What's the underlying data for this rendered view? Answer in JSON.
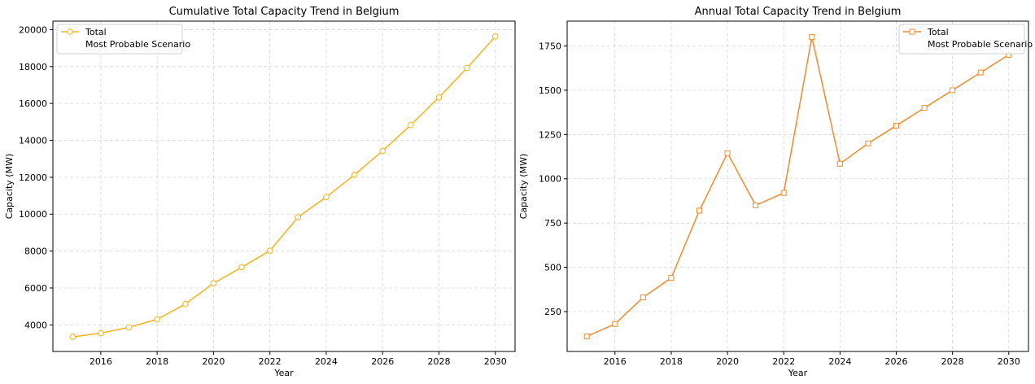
{
  "chart_data": [
    {
      "type": "line",
      "title": "Cumulative Total Capacity Trend in Belgium",
      "xlabel": "Year",
      "ylabel": "Capacity (MW)",
      "xlim": [
        2014.3,
        2030.7
      ],
      "ylim": [
        2560,
        20460
      ],
      "xticks": [
        2016,
        2018,
        2020,
        2022,
        2024,
        2026,
        2028,
        2030
      ],
      "yticks": [
        4000,
        6000,
        8000,
        10000,
        12000,
        14000,
        16000,
        18000,
        20000
      ],
      "grid": true,
      "legend": {
        "placement": "top-left",
        "entries": [
          "Total",
          "Most Probable Scenario"
        ]
      },
      "marker": "circle",
      "color": "#f5b31c",
      "series": [
        {
          "name": "Total",
          "x": [
            2015,
            2016,
            2017,
            2018,
            2019,
            2020,
            2021,
            2022,
            2023,
            2024,
            2025,
            2026,
            2027,
            2028,
            2029,
            2030
          ],
          "values": [
            3350,
            3550,
            3870,
            4300,
            5130,
            6260,
            7120,
            8020,
            9840,
            10930,
            12130,
            13430,
            14830,
            16330,
            17930,
            19630
          ]
        }
      ]
    },
    {
      "type": "line",
      "title": "Annual Total Capacity Trend in Belgium",
      "xlabel": "Year",
      "ylabel": "Capacity (MW)",
      "xlim": [
        2014.3,
        2030.7
      ],
      "ylim": [
        25,
        1890
      ],
      "xticks": [
        2016,
        2018,
        2020,
        2022,
        2024,
        2026,
        2028,
        2030
      ],
      "yticks": [
        250,
        500,
        750,
        1000,
        1250,
        1500,
        1750
      ],
      "grid": true,
      "legend": {
        "placement": "top-right",
        "entries": [
          "Total",
          "Most Probable Scenario"
        ]
      },
      "marker": "square",
      "color": "#ee8b2f",
      "series": [
        {
          "name": "Total",
          "x": [
            2015,
            2016,
            2017,
            2018,
            2019,
            2020,
            2021,
            2022,
            2023,
            2024,
            2025,
            2026,
            2027,
            2028,
            2029,
            2030
          ],
          "values": [
            110,
            180,
            330,
            440,
            820,
            1145,
            850,
            920,
            1800,
            1085,
            1200,
            1300,
            1400,
            1500,
            1600,
            1700
          ]
        }
      ]
    }
  ]
}
